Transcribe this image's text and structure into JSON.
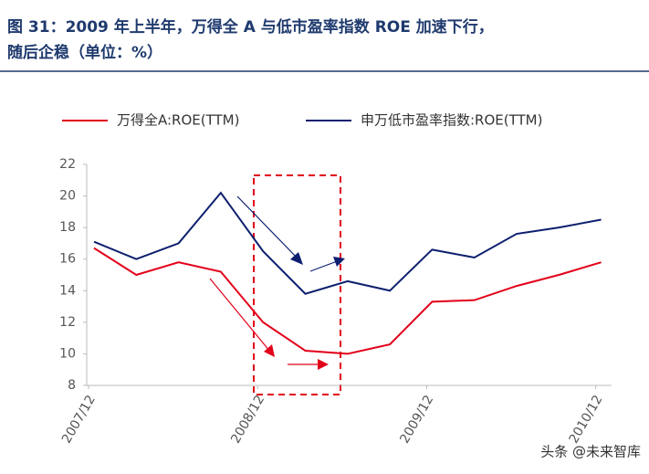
{
  "chart_data": {
    "type": "line",
    "title_lines": [
      "图 31：2009 年上半年，万得全 A 与低市盈率指数 ROE 加速下行，",
      "随后企稳（单位：%）"
    ],
    "categories": [
      "2007/12",
      null,
      null,
      null,
      "2008/12",
      null,
      null,
      null,
      "2009/12",
      null,
      null,
      null,
      "2010/12"
    ],
    "series": [
      {
        "name": "万得全A:ROE(TTM)",
        "color": "#e2001a",
        "values": [
          16.7,
          15.0,
          15.8,
          15.2,
          12.0,
          10.2,
          10.0,
          10.6,
          13.3,
          13.4,
          14.3,
          15.0,
          15.8
        ]
      },
      {
        "name": "申万低市盈率指数:ROE(TTM)",
        "color": "#0d1f6e",
        "values": [
          17.1,
          16.0,
          17.0,
          20.2,
          16.5,
          13.8,
          14.6,
          14.0,
          16.6,
          16.1,
          17.6,
          18.0,
          18.5
        ]
      }
    ],
    "ylim": [
      8,
      22
    ],
    "yticks": [
      8,
      10,
      12,
      14,
      16,
      18,
      20,
      22
    ],
    "watermark": "头条 @未来智库"
  }
}
